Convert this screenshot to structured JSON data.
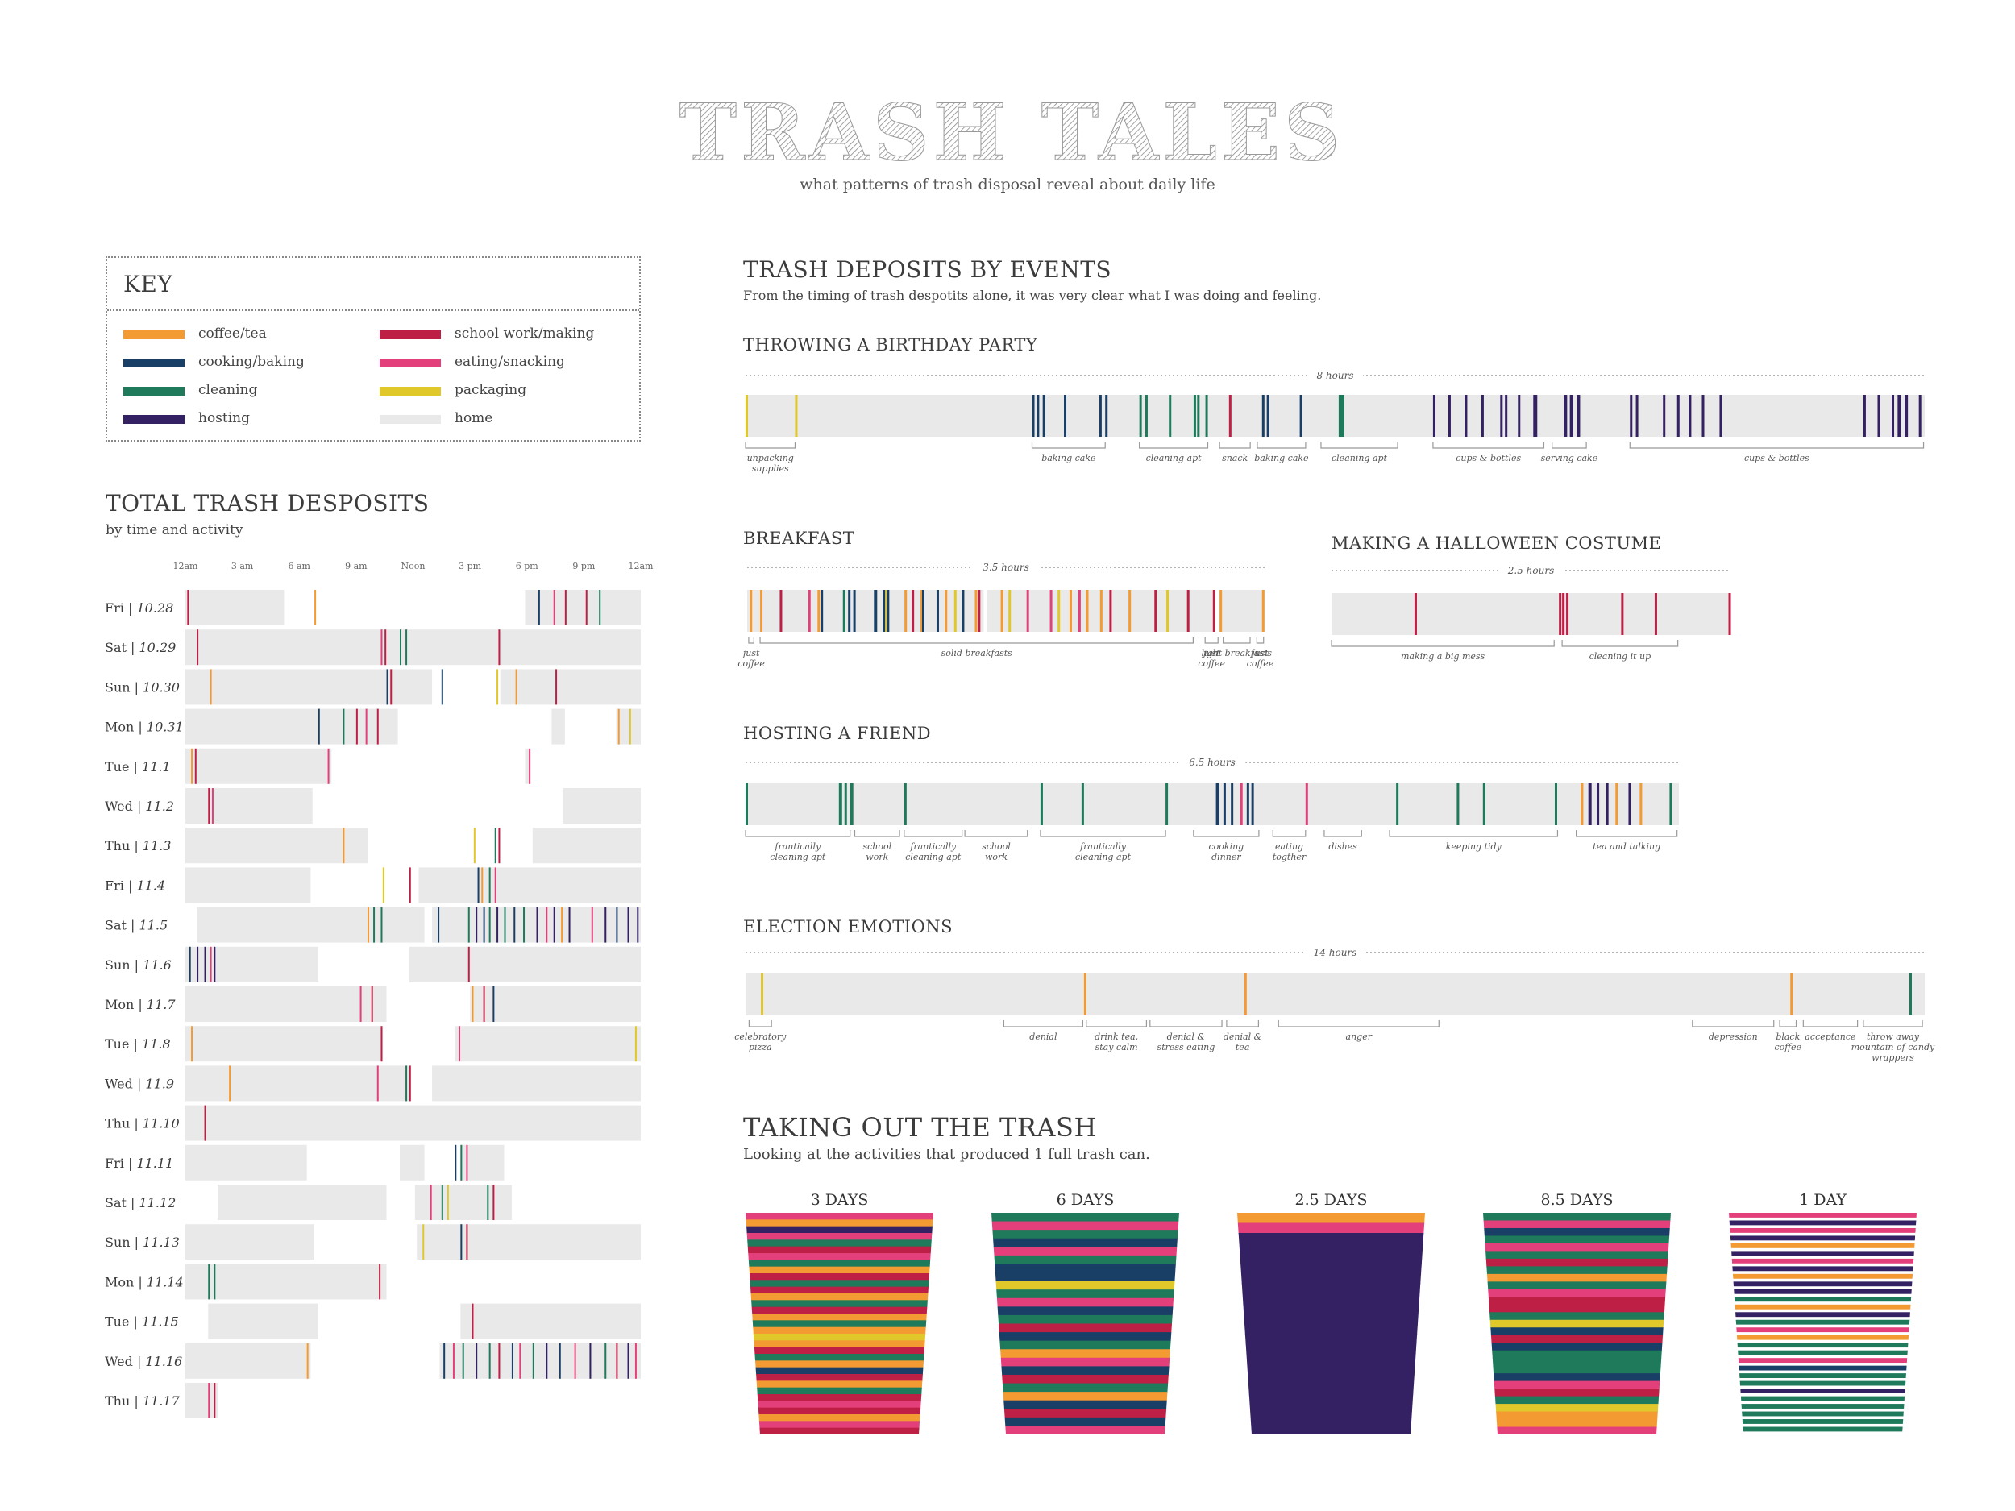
{
  "title": "TRASH TALES",
  "subtitle": "what patterns of trash disposal reveal about daily life",
  "colors": {
    "coffee": "#f39a32",
    "cooking": "#1a3f66",
    "cleaning": "#1e7a5a",
    "hosting": "#332163",
    "school": "#bd1f45",
    "eating": "#e33f7b",
    "packaging": "#e0c82a",
    "home": "#e9e9e9"
  },
  "key": {
    "title": "KEY",
    "items": [
      {
        "label": "coffee/tea",
        "color": "coffee"
      },
      {
        "label": "cooking/baking",
        "color": "cooking"
      },
      {
        "label": "cleaning",
        "color": "cleaning"
      },
      {
        "label": "hosting",
        "color": "hosting"
      },
      {
        "label": "school work/making",
        "color": "school"
      },
      {
        "label": "eating/snacking",
        "color": "eating"
      },
      {
        "label": "packaging",
        "color": "packaging"
      },
      {
        "label": "home",
        "color": "home"
      }
    ]
  },
  "total": {
    "title": "TOTAL TRASH DESPOSITS",
    "subtitle": "by time and activity",
    "hours": [
      "12am",
      "3 am",
      "6 am",
      "9 am",
      "Noon",
      "3 pm",
      "6 pm",
      "9 pm",
      "12am"
    ],
    "days": [
      {
        "day": "Fri",
        "date": "10.28"
      },
      {
        "day": "Sat",
        "date": "10.29"
      },
      {
        "day": "Sun",
        "date": "10.30"
      },
      {
        "day": "Mon",
        "date": "10.31"
      },
      {
        "day": "Tue",
        "date": "11.1"
      },
      {
        "day": "Wed",
        "date": "11.2"
      },
      {
        "day": "Thu",
        "date": "11.3"
      },
      {
        "day": "Fri",
        "date": "11.4"
      },
      {
        "day": "Sat",
        "date": "11.5"
      },
      {
        "day": "Sun",
        "date": "11.6"
      },
      {
        "day": "Mon",
        "date": "11.7"
      },
      {
        "day": "Tue",
        "date": "11.8"
      },
      {
        "day": "Wed",
        "date": "11.9"
      },
      {
        "day": "Thu",
        "date": "11.10"
      },
      {
        "day": "Fri",
        "date": "11.11"
      },
      {
        "day": "Sat",
        "date": "11.12"
      },
      {
        "day": "Sun",
        "date": "11.13"
      },
      {
        "day": "Mon",
        "date": "11.14"
      },
      {
        "day": "Tue",
        "date": "11.15"
      },
      {
        "day": "Wed",
        "date": "11.16"
      },
      {
        "day": "Thu",
        "date": "11.17"
      }
    ]
  },
  "events": {
    "title": "TRASH DEPOSITS BY EVENTS",
    "subtitle": "From the timing of trash despotits alone, it was very clear what I was doing and feeling.",
    "birthday": {
      "title": "THROWING A BIRTHDAY PARTY",
      "duration": "8 hours",
      "annotations": [
        "unpacking supplies",
        "baking cake",
        "cleaning apt",
        "snack",
        "baking cake",
        "cleaning apt",
        "cups & bottles",
        "serving cake",
        "cups & bottles"
      ]
    },
    "breakfast": {
      "title": "BREAKFAST",
      "duration": "3.5 hours",
      "annotations": [
        "just coffee",
        "solid breakfasts",
        "just coffee",
        "light breakfasts",
        "just coffee"
      ]
    },
    "halloween": {
      "title": "MAKING A HALLOWEEN COSTUME",
      "duration": "2.5 hours",
      "annotations": [
        "making a big mess",
        "cleaning it up"
      ]
    },
    "friend": {
      "title": "HOSTING A FRIEND",
      "duration": "6.5 hours",
      "annotations": [
        "frantically cleaning apt",
        "school work",
        "frantically cleaning apt",
        "school work",
        "frantically cleaning apt",
        "cooking dinner",
        "eating togther",
        "dishes",
        "keeping tidy",
        "tea and talking"
      ]
    },
    "election": {
      "title": "ELECTION EMOTIONS",
      "duration": "14 hours",
      "annotations": [
        "celebratory pizza",
        "denial",
        "drink tea, stay calm",
        "denial & stress eating",
        "denial & tea",
        "anger",
        "depression",
        "black coffee",
        "acceptance",
        "throw away mountain of candy wrappers"
      ]
    }
  },
  "trash": {
    "title": "TAKING OUT THE TRASH",
    "subtitle": "Looking at the activities that produced 1 full trash can.",
    "cans": [
      {
        "label": "3 DAYS"
      },
      {
        "label": "6 DAYS"
      },
      {
        "label": "2.5 DAYS"
      },
      {
        "label": "8.5 DAYS"
      },
      {
        "label": "1 DAY"
      }
    ]
  }
}
